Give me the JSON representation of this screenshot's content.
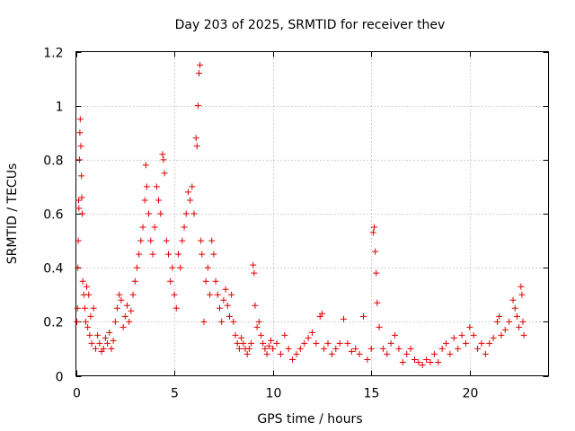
{
  "chart_data": {
    "type": "scatter",
    "title": "Day 203 of 2025, SRMTID for receiver thev",
    "xlabel": "GPS time / hours",
    "ylabel": "SRMTID / TECUs",
    "xlim": [
      0,
      24
    ],
    "ylim": [
      0,
      1.2
    ],
    "x_ticks": [
      0,
      5,
      10,
      15,
      20
    ],
    "x_tick_labels": [
      "0",
      "5",
      "10",
      "15",
      "20"
    ],
    "y_ticks": [
      0,
      0.2,
      0.4,
      0.6,
      0.8,
      1,
      1.2
    ],
    "y_tick_labels": [
      "0",
      "0.2",
      "0.4",
      "0.6",
      "0.8",
      "1",
      "1.2"
    ],
    "grid": true,
    "marker": "+",
    "series": [
      {
        "name": "SRMTID",
        "color": "#e00000",
        "points": [
          [
            0.05,
            0.2
          ],
          [
            0.08,
            0.25
          ],
          [
            0.1,
            0.4
          ],
          [
            0.12,
            0.5
          ],
          [
            0.14,
            0.65
          ],
          [
            0.15,
            0.62
          ],
          [
            0.18,
            0.8
          ],
          [
            0.2,
            0.9
          ],
          [
            0.22,
            0.95
          ],
          [
            0.25,
            0.85
          ],
          [
            0.28,
            0.74
          ],
          [
            0.3,
            0.66
          ],
          [
            0.32,
            0.6
          ],
          [
            0.35,
            0.35
          ],
          [
            0.4,
            0.3
          ],
          [
            0.45,
            0.25
          ],
          [
            0.5,
            0.2
          ],
          [
            0.55,
            0.33
          ],
          [
            0.6,
            0.18
          ],
          [
            0.65,
            0.3
          ],
          [
            0.7,
            0.15
          ],
          [
            0.75,
            0.22
          ],
          [
            0.8,
            0.12
          ],
          [
            0.9,
            0.25
          ],
          [
            1.0,
            0.1
          ],
          [
            1.1,
            0.15
          ],
          [
            1.2,
            0.12
          ],
          [
            1.3,
            0.09
          ],
          [
            1.4,
            0.1
          ],
          [
            1.5,
            0.14
          ],
          [
            1.6,
            0.12
          ],
          [
            1.7,
            0.16
          ],
          [
            1.8,
            0.1
          ],
          [
            1.9,
            0.13
          ],
          [
            2.0,
            0.2
          ],
          [
            2.1,
            0.25
          ],
          [
            2.2,
            0.3
          ],
          [
            2.3,
            0.28
          ],
          [
            2.4,
            0.18
          ],
          [
            2.5,
            0.22
          ],
          [
            2.6,
            0.26
          ],
          [
            2.7,
            0.2
          ],
          [
            2.8,
            0.24
          ],
          [
            2.9,
            0.3
          ],
          [
            3.0,
            0.35
          ],
          [
            3.1,
            0.4
          ],
          [
            3.2,
            0.45
          ],
          [
            3.3,
            0.5
          ],
          [
            3.4,
            0.55
          ],
          [
            3.5,
            0.65
          ],
          [
            3.55,
            0.78
          ],
          [
            3.6,
            0.7
          ],
          [
            3.7,
            0.6
          ],
          [
            3.8,
            0.5
          ],
          [
            3.9,
            0.45
          ],
          [
            4.0,
            0.55
          ],
          [
            4.1,
            0.7
          ],
          [
            4.2,
            0.65
          ],
          [
            4.3,
            0.6
          ],
          [
            4.4,
            0.82
          ],
          [
            4.45,
            0.8
          ],
          [
            4.5,
            0.75
          ],
          [
            4.6,
            0.5
          ],
          [
            4.7,
            0.45
          ],
          [
            4.8,
            0.35
          ],
          [
            4.9,
            0.4
          ],
          [
            5.0,
            0.3
          ],
          [
            5.1,
            0.25
          ],
          [
            5.2,
            0.45
          ],
          [
            5.3,
            0.4
          ],
          [
            5.4,
            0.5
          ],
          [
            5.5,
            0.55
          ],
          [
            5.6,
            0.6
          ],
          [
            5.7,
            0.68
          ],
          [
            5.8,
            0.65
          ],
          [
            5.9,
            0.7
          ],
          [
            6.0,
            0.6
          ],
          [
            6.1,
            0.88
          ],
          [
            6.15,
            0.85
          ],
          [
            6.2,
            1.0
          ],
          [
            6.25,
            1.12
          ],
          [
            6.3,
            1.15
          ],
          [
            6.35,
            0.5
          ],
          [
            6.4,
            0.45
          ],
          [
            6.5,
            0.2
          ],
          [
            6.6,
            0.35
          ],
          [
            6.7,
            0.4
          ],
          [
            6.8,
            0.3
          ],
          [
            6.9,
            0.5
          ],
          [
            7.0,
            0.45
          ],
          [
            7.1,
            0.35
          ],
          [
            7.2,
            0.3
          ],
          [
            7.3,
            0.25
          ],
          [
            7.4,
            0.2
          ],
          [
            7.5,
            0.28
          ],
          [
            7.6,
            0.32
          ],
          [
            7.7,
            0.26
          ],
          [
            7.8,
            0.22
          ],
          [
            7.9,
            0.3
          ],
          [
            8.0,
            0.2
          ],
          [
            8.1,
            0.15
          ],
          [
            8.2,
            0.12
          ],
          [
            8.3,
            0.1
          ],
          [
            8.4,
            0.14
          ],
          [
            8.5,
            0.12
          ],
          [
            8.6,
            0.1
          ],
          [
            8.7,
            0.08
          ],
          [
            8.8,
            0.1
          ],
          [
            8.9,
            0.12
          ],
          [
            9.0,
            0.41
          ],
          [
            9.05,
            0.38
          ],
          [
            9.1,
            0.26
          ],
          [
            9.2,
            0.18
          ],
          [
            9.3,
            0.2
          ],
          [
            9.4,
            0.15
          ],
          [
            9.5,
            0.12
          ],
          [
            9.6,
            0.1
          ],
          [
            9.7,
            0.08
          ],
          [
            9.8,
            0.11
          ],
          [
            9.9,
            0.13
          ],
          [
            10.0,
            0.1
          ],
          [
            10.2,
            0.12
          ],
          [
            10.4,
            0.08
          ],
          [
            10.6,
            0.15
          ],
          [
            10.8,
            0.1
          ],
          [
            11.0,
            0.06
          ],
          [
            11.2,
            0.08
          ],
          [
            11.4,
            0.1
          ],
          [
            11.6,
            0.12
          ],
          [
            11.8,
            0.14
          ],
          [
            12.0,
            0.16
          ],
          [
            12.2,
            0.12
          ],
          [
            12.4,
            0.22
          ],
          [
            12.5,
            0.23
          ],
          [
            12.6,
            0.1
          ],
          [
            12.8,
            0.12
          ],
          [
            13.0,
            0.08
          ],
          [
            13.2,
            0.1
          ],
          [
            13.4,
            0.12
          ],
          [
            13.6,
            0.21
          ],
          [
            13.8,
            0.12
          ],
          [
            14.0,
            0.09
          ],
          [
            14.2,
            0.1
          ],
          [
            14.4,
            0.08
          ],
          [
            14.6,
            0.22
          ],
          [
            14.8,
            0.06
          ],
          [
            15.0,
            0.1
          ],
          [
            15.1,
            0.53
          ],
          [
            15.15,
            0.55
          ],
          [
            15.2,
            0.46
          ],
          [
            15.25,
            0.38
          ],
          [
            15.3,
            0.27
          ],
          [
            15.4,
            0.18
          ],
          [
            15.6,
            0.1
          ],
          [
            15.8,
            0.08
          ],
          [
            16.0,
            0.12
          ],
          [
            16.2,
            0.15
          ],
          [
            16.4,
            0.1
          ],
          [
            16.6,
            0.05
          ],
          [
            16.8,
            0.08
          ],
          [
            17.0,
            0.1
          ],
          [
            17.2,
            0.06
          ],
          [
            17.4,
            0.05
          ],
          [
            17.6,
            0.04
          ],
          [
            17.8,
            0.06
          ],
          [
            18.0,
            0.05
          ],
          [
            18.2,
            0.08
          ],
          [
            18.4,
            0.05
          ],
          [
            18.6,
            0.1
          ],
          [
            18.8,
            0.12
          ],
          [
            19.0,
            0.08
          ],
          [
            19.2,
            0.14
          ],
          [
            19.4,
            0.1
          ],
          [
            19.6,
            0.15
          ],
          [
            19.8,
            0.12
          ],
          [
            20.0,
            0.18
          ],
          [
            20.2,
            0.15
          ],
          [
            20.4,
            0.1
          ],
          [
            20.6,
            0.12
          ],
          [
            20.8,
            0.08
          ],
          [
            21.0,
            0.12
          ],
          [
            21.2,
            0.14
          ],
          [
            21.4,
            0.2
          ],
          [
            21.5,
            0.22
          ],
          [
            21.6,
            0.15
          ],
          [
            21.8,
            0.17
          ],
          [
            22.0,
            0.2
          ],
          [
            22.2,
            0.28
          ],
          [
            22.3,
            0.25
          ],
          [
            22.4,
            0.22
          ],
          [
            22.5,
            0.18
          ],
          [
            22.6,
            0.33
          ],
          [
            22.65,
            0.3
          ],
          [
            22.7,
            0.2
          ],
          [
            22.75,
            0.15
          ]
        ]
      }
    ]
  }
}
